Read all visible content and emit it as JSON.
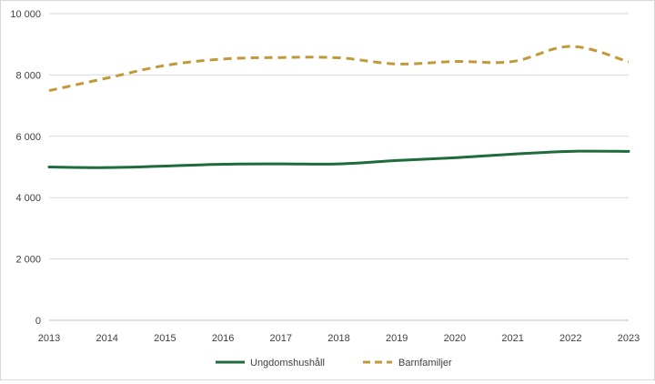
{
  "chart_data": {
    "type": "line",
    "title": "",
    "xlabel": "",
    "ylabel": "",
    "x": [
      2013,
      2014,
      2015,
      2016,
      2017,
      2018,
      2019,
      2020,
      2021,
      2022,
      2023
    ],
    "x_tick_labels": [
      "2013",
      "2014",
      "2015",
      "2016",
      "2017",
      "2018",
      "2019",
      "2020",
      "2021",
      "2022",
      "2023"
    ],
    "ylim": [
      0,
      10000
    ],
    "y_ticks": [
      0,
      2000,
      4000,
      6000,
      8000,
      10000
    ],
    "y_tick_labels": [
      "0",
      "2 000",
      "4 000",
      "6 000",
      "8 000",
      "10 000"
    ],
    "grid": true,
    "legend_position": "bottom",
    "series": [
      {
        "name": "Ungdomshushåll",
        "color": "#1e6b3c",
        "dash": "solid",
        "values": [
          5000,
          4980,
          5030,
          5090,
          5100,
          5100,
          5210,
          5300,
          5420,
          5510,
          5510
        ]
      },
      {
        "name": "Barnfamiljer",
        "color": "#c09a3a",
        "dash": "dashed",
        "values": [
          7490,
          7900,
          8310,
          8520,
          8570,
          8560,
          8360,
          8440,
          8440,
          8930,
          8430
        ]
      }
    ]
  }
}
